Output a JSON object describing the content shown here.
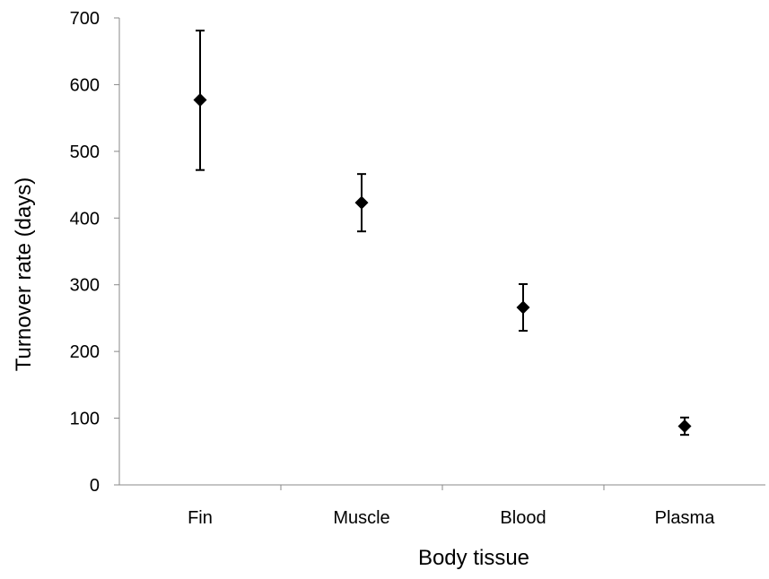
{
  "chart_data": {
    "type": "scatter",
    "title": "",
    "xlabel": "Body tissue",
    "ylabel": "Turnover rate (days)",
    "categories": [
      "Fin",
      "Muscle",
      "Blood",
      "Plasma"
    ],
    "values": [
      577,
      423,
      266,
      88
    ],
    "error_low": [
      472,
      380,
      231,
      75
    ],
    "error_high": [
      681,
      466,
      301,
      101
    ],
    "ylim": [
      0,
      700
    ],
    "yticks": [
      0,
      100,
      200,
      300,
      400,
      500,
      600,
      700
    ],
    "grid": false,
    "legend": "none",
    "marker": "diamond",
    "color": "#000000"
  }
}
